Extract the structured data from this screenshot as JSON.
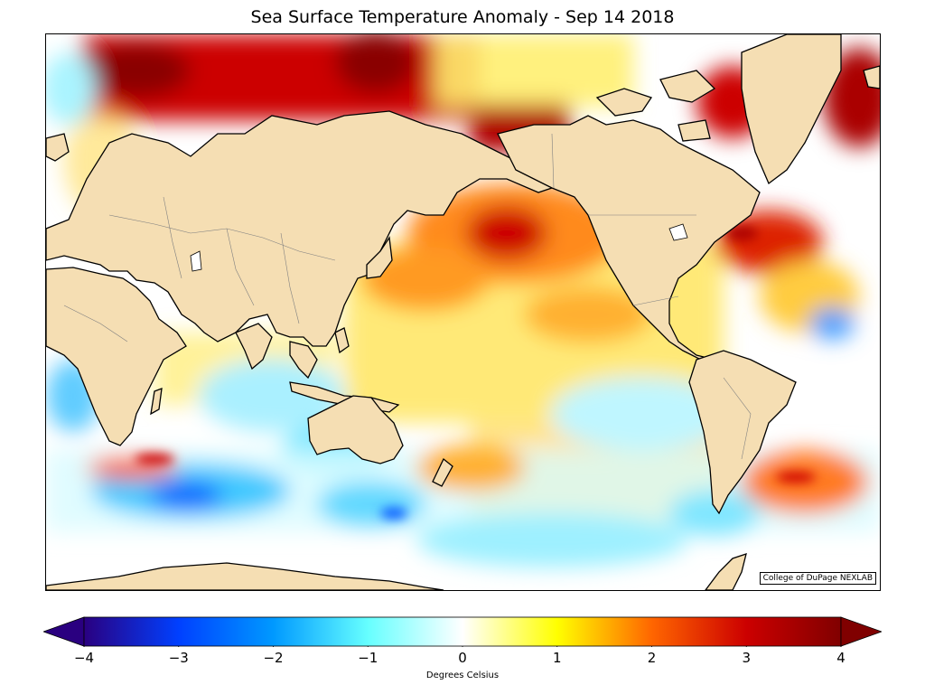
{
  "title": "Sea Surface Temperature Anomaly - Sep 14 2018",
  "credit": "College of DuPage NEXLAB",
  "colorbar": {
    "label": "Degrees Celsius",
    "min": -4,
    "max": 4,
    "extend": "both",
    "ticks": [
      {
        "value": -4,
        "label": "−4"
      },
      {
        "value": -3,
        "label": "−3"
      },
      {
        "value": -2,
        "label": "−2"
      },
      {
        "value": -1,
        "label": "−1"
      },
      {
        "value": 0,
        "label": "0"
      },
      {
        "value": 1,
        "label": "1"
      },
      {
        "value": 2,
        "label": "2"
      },
      {
        "value": 3,
        "label": "3"
      },
      {
        "value": 4,
        "label": "4"
      }
    ],
    "stops": [
      {
        "value": -4,
        "color": "#2a0080"
      },
      {
        "value": -3,
        "color": "#0040ff"
      },
      {
        "value": -2,
        "color": "#0099ff"
      },
      {
        "value": -1,
        "color": "#66ffff"
      },
      {
        "value": 0,
        "color": "#ffffff"
      },
      {
        "value": 1,
        "color": "#ffff00"
      },
      {
        "value": 2,
        "color": "#ff6600"
      },
      {
        "value": 3,
        "color": "#cc0000"
      },
      {
        "value": 4,
        "color": "#800000"
      }
    ],
    "over_color": "#800000",
    "under_color": "#2a0080"
  },
  "map": {
    "land_color": "#f5deb3",
    "ocean_background": "#ffffff",
    "coastline_color": "#000000",
    "border_color": "#808080"
  }
}
